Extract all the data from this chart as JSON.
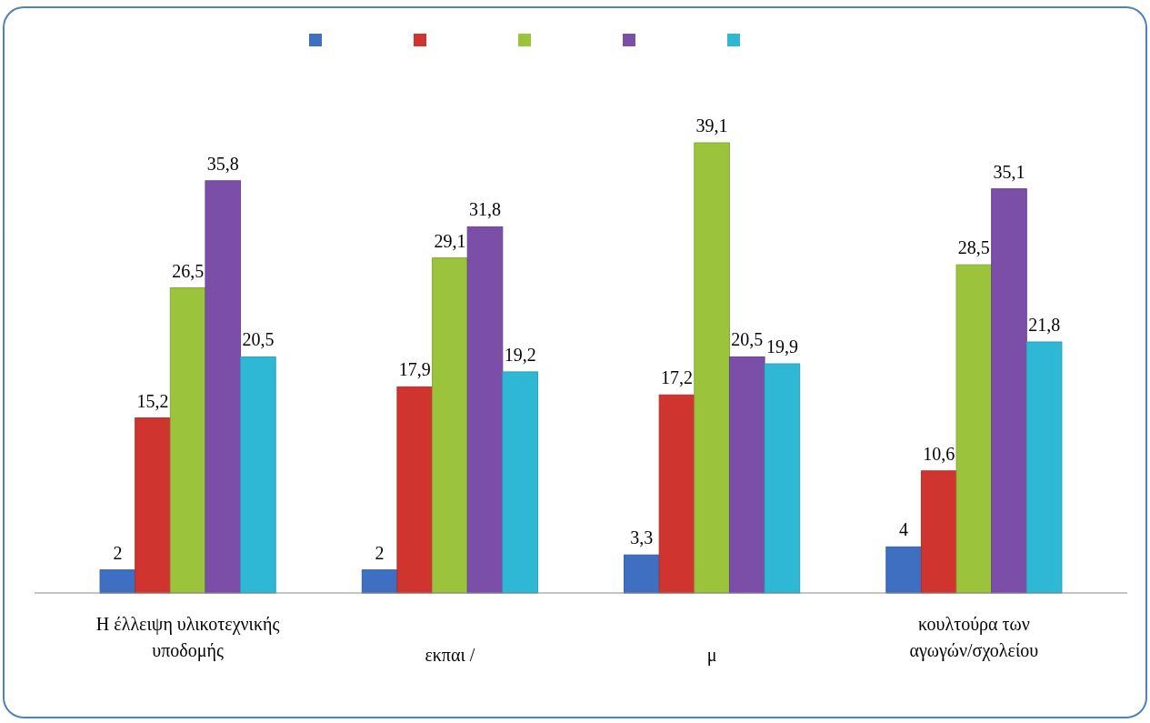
{
  "chart_data": {
    "type": "bar",
    "categories": [
      "Η έλλειψη υλικοτεχνικής\nυποδομής",
      "εκπαι /",
      "μ",
      "κουλτούρα των\nαγωγών/σχολείου"
    ],
    "series": [
      {
        "color": "#3f6fc0",
        "values": [
          2,
          2,
          3.3,
          4
        ],
        "value_labels": [
          "2",
          "2",
          "3,3",
          "4"
        ]
      },
      {
        "color": "#d0342f",
        "values": [
          15.2,
          17.9,
          17.2,
          10.6
        ],
        "value_labels": [
          "15,2",
          "17,9",
          "17,2",
          "10,6"
        ]
      },
      {
        "color": "#9bc33c",
        "values": [
          26.5,
          29.1,
          39.1,
          28.5
        ],
        "value_labels": [
          "26,5",
          "29,1",
          "39,1",
          "28,5"
        ]
      },
      {
        "color": "#7b4fa8",
        "values": [
          35.8,
          31.8,
          20.5,
          35.1
        ],
        "value_labels": [
          "35,8",
          "31,8",
          "20,5",
          "35,1"
        ]
      },
      {
        "color": "#2fb8d6",
        "values": [
          20.5,
          19.2,
          19.9,
          21.8
        ],
        "value_labels": [
          "20,5",
          "19,2",
          "19,9",
          "21,8"
        ]
      }
    ]
  }
}
